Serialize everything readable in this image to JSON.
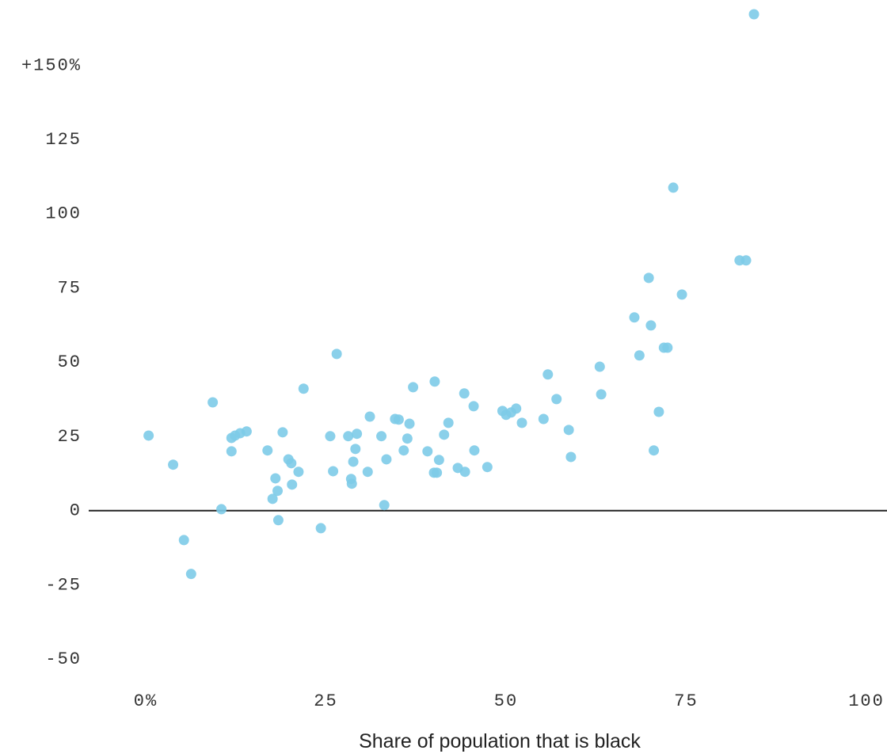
{
  "chart_data": {
    "type": "scatter",
    "x_label": "Share of population that is black",
    "color": "#7dcbe8",
    "xlim": [
      0,
      100
    ],
    "ylim": [
      -55,
      172
    ],
    "xticks": [
      {
        "value": 0,
        "label": "0%"
      },
      25,
      50,
      75,
      100
    ],
    "yticks": [
      -50,
      -25,
      0,
      25,
      50,
      75,
      100,
      125,
      {
        "value": 150,
        "label": "+150%"
      }
    ],
    "x": [
      0.4,
      3.8,
      5.3,
      6.3,
      9.3,
      10.5,
      11.9,
      11.9,
      12.4,
      13.1,
      14,
      16.9,
      17.6,
      18,
      18.3,
      18.4,
      19,
      19.8,
      20.2,
      20.3,
      21.2,
      21.9,
      24.3,
      25.6,
      26,
      26.5,
      28.1,
      28.5,
      28.6,
      28.8,
      29.1,
      29.3,
      30.8,
      31.1,
      32.7,
      33.1,
      33.4,
      34.6,
      35.1,
      35.8,
      36.3,
      36.6,
      37.1,
      39.1,
      40.1,
      40,
      40.4,
      40.7,
      41.4,
      42,
      43.3,
      44.2,
      44.3,
      45.5,
      45.6,
      47.4,
      49.5,
      50,
      50.7,
      51.4,
      52.2,
      55.2,
      55.8,
      57,
      58.7,
      59,
      63,
      63.2,
      67.8,
      68.5,
      69.8,
      70.1,
      70.5,
      71.2,
      71.9,
      72.4,
      73.2,
      74.4,
      82.4,
      83.3,
      84.4
    ],
    "values": [
      25.3,
      15.5,
      -9.9,
      -21.3,
      36.5,
      0.5,
      24.5,
      20,
      25.3,
      26.1,
      26.7,
      20.3,
      4,
      10.9,
      6.7,
      -3.2,
      26.4,
      17.3,
      16,
      8.8,
      13.1,
      41.1,
      -5.9,
      25.1,
      13.3,
      52.8,
      25.1,
      10.7,
      9.1,
      16.5,
      20.8,
      25.9,
      13.1,
      31.7,
      25.1,
      1.9,
      17.3,
      30.9,
      30.7,
      20.3,
      24.3,
      29.3,
      41.6,
      20,
      43.5,
      12.8,
      12.8,
      17.1,
      25.6,
      29.6,
      14.4,
      39.5,
      13.1,
      35.2,
      20.3,
      14.7,
      33.6,
      32.3,
      33.1,
      34.4,
      29.6,
      30.9,
      45.9,
      37.6,
      27.2,
      18.1,
      48.5,
      39.2,
      65.1,
      52.3,
      78.4,
      62.4,
      20.3,
      33.3,
      54.9,
      54.9,
      108.8,
      72.8,
      84.3,
      84.3,
      167.2
    ]
  }
}
